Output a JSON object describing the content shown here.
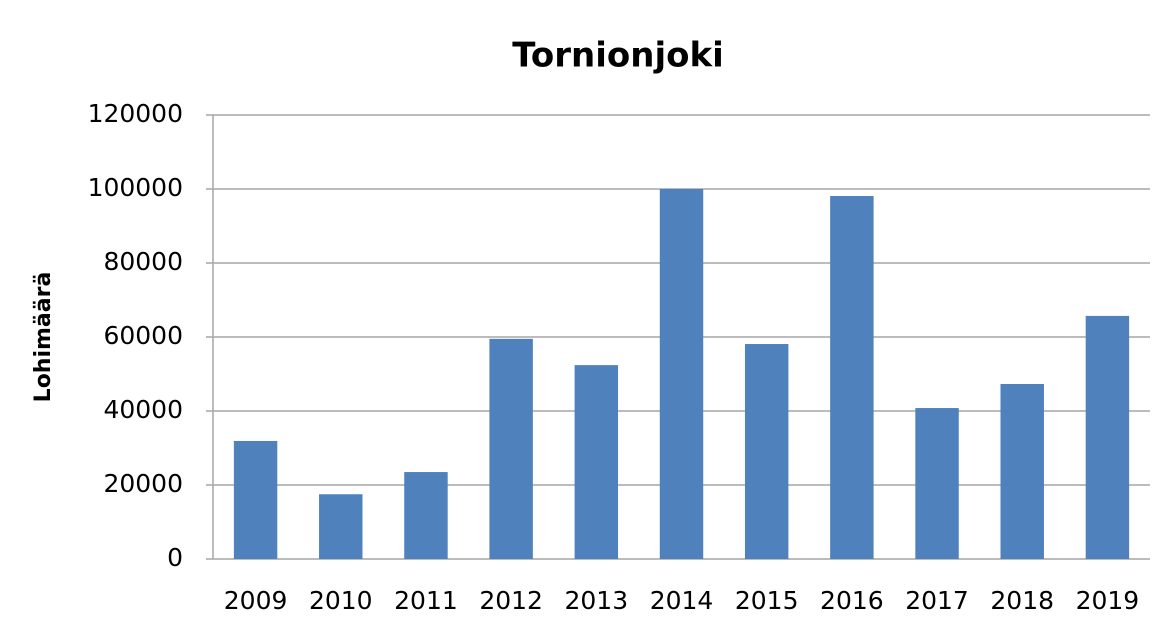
{
  "chart_data": {
    "type": "bar",
    "title": "Tornionjoki",
    "y_label": "Lohimäärä",
    "categories": [
      "2009",
      "2010",
      "2011",
      "2012",
      "2013",
      "2014",
      "2015",
      "2016",
      "2017",
      "2018",
      "2019"
    ],
    "values": [
      31900,
      17500,
      23500,
      59500,
      52400,
      100000,
      58100,
      98100,
      40800,
      47300,
      65700
    ],
    "color": "#4f81bd",
    "ylim": [
      0,
      120000
    ],
    "yticks": [
      0,
      20000,
      40000,
      60000,
      80000,
      100000,
      120000
    ],
    "grid": true
  }
}
